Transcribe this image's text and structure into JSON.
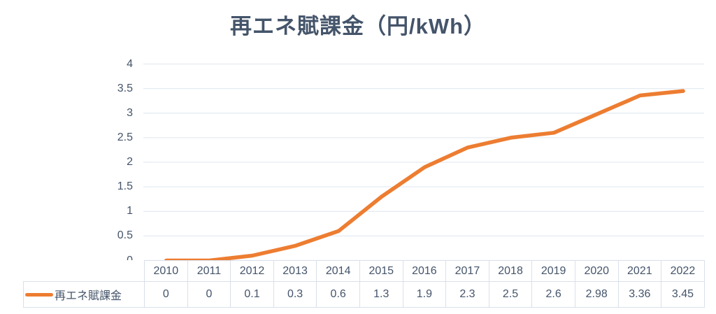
{
  "chart_data": {
    "type": "line",
    "title": "再エネ賦課金（円/kWh）",
    "categories": [
      "2010",
      "2011",
      "2012",
      "2013",
      "2014",
      "2015",
      "2016",
      "2017",
      "2018",
      "2019",
      "2020",
      "2021",
      "2022"
    ],
    "series": [
      {
        "name": "再エネ賦課金",
        "values": [
          0,
          0,
          0.1,
          0.3,
          0.6,
          1.3,
          1.9,
          2.3,
          2.5,
          2.6,
          2.98,
          3.36,
          3.45
        ],
        "color": "#ED7D31"
      }
    ],
    "xlabel": "",
    "ylabel": "",
    "ylim": [
      0,
      4
    ],
    "ytick_step": 0.5,
    "yticks": [
      "0",
      "0.5",
      "1",
      "1.5",
      "2",
      "2.5",
      "3",
      "3.5",
      "4"
    ],
    "grid": true,
    "legend_position": "data-table-left",
    "data_table_shown": true
  },
  "colors": {
    "line": "#ED7D31",
    "text": "#44546A",
    "gridline": "#E5EBF2",
    "table_border": "#D9E0EB",
    "background": "#FFFFFF"
  }
}
